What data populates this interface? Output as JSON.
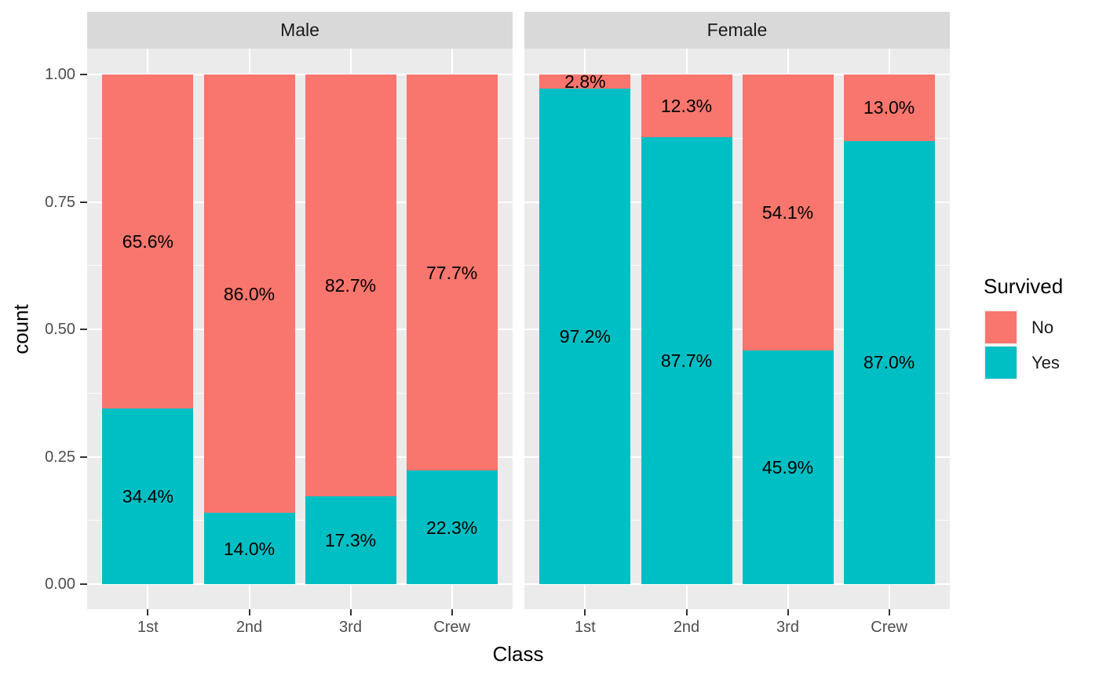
{
  "chart_data": {
    "type": "bar",
    "variant": "stacked-normalized-percent",
    "title": "",
    "xlabel": "Class",
    "ylabel": "count",
    "categories": [
      "1st",
      "2nd",
      "3rd",
      "Crew"
    ],
    "facet_variable_values": [
      "Male",
      "Female"
    ],
    "ylim": [
      0,
      1
    ],
    "grid": true,
    "y_major_ticks": [
      {
        "value": 1.0,
        "label": "1.00"
      },
      {
        "value": 0.75,
        "label": "0.75"
      },
      {
        "value": 0.5,
        "label": "0.50"
      },
      {
        "value": 0.25,
        "label": "0.25"
      },
      {
        "value": 0.0,
        "label": "0.00"
      }
    ],
    "facets": [
      {
        "label": "Male",
        "series": [
          {
            "name": "No",
            "color": "#F8766D",
            "values": [
              0.656,
              0.86,
              0.827,
              0.777
            ],
            "labels": [
              "65.6%",
              "86.0%",
              "82.7%",
              "77.7%"
            ]
          },
          {
            "name": "Yes",
            "color": "#00BFC4",
            "values": [
              0.344,
              0.14,
              0.173,
              0.223
            ],
            "labels": [
              "34.4%",
              "14.0%",
              "17.3%",
              "22.3%"
            ]
          }
        ]
      },
      {
        "label": "Female",
        "series": [
          {
            "name": "No",
            "color": "#F8766D",
            "values": [
              0.028,
              0.123,
              0.541,
              0.13
            ],
            "labels": [
              "2.8%",
              "12.3%",
              "54.1%",
              "13.0%"
            ]
          },
          {
            "name": "Yes",
            "color": "#00BFC4",
            "values": [
              0.972,
              0.877,
              0.459,
              0.87
            ],
            "labels": [
              "97.2%",
              "87.7%",
              "45.9%",
              "87.0%"
            ]
          }
        ]
      }
    ],
    "legend": {
      "title": "Survived",
      "position": "right",
      "entries": [
        {
          "label": "No",
          "color": "#F8766D"
        },
        {
          "label": "Yes",
          "color": "#00BFC4"
        }
      ]
    },
    "theme": {
      "background": "#FFFFFF",
      "panel_bg": "#EBEBEB",
      "strip_bg": "#D9D9D9",
      "grid_color": "#FFFFFF",
      "axis_text_color": "#4D4D4D",
      "tick_color": "#333333",
      "label_text_color": "#000000"
    }
  }
}
